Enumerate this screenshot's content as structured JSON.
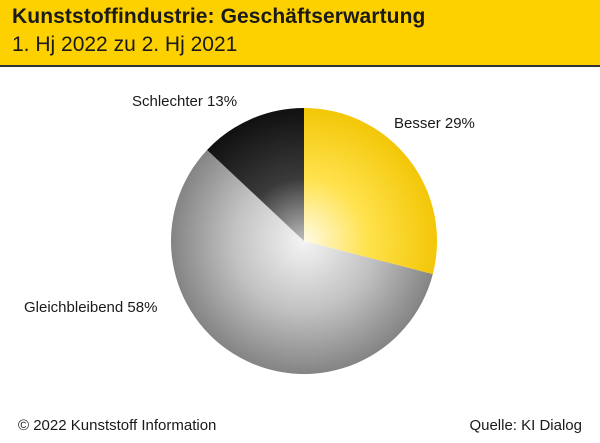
{
  "header": {
    "title": "Kunststoffindustrie: Geschäftserwartung",
    "subtitle": "1. Hj 2022 zu 2. Hj 2021",
    "background_color": "#fdd000"
  },
  "footer": {
    "copyright": "© 2022 Kunststoff Information",
    "source": "Quelle: KI Dialog"
  },
  "chart_data": {
    "type": "pie",
    "title": "Kunststoffindustrie: Geschäftserwartung",
    "subtitle": "1. Hj 2022 zu 2. Hj 2021",
    "start_angle_deg": 0,
    "direction": "clockwise",
    "slices": [
      {
        "label": "Besser 29%",
        "name": "Besser",
        "value": 29,
        "color": "#f7c800"
      },
      {
        "label": "Gleichbleibend 58%",
        "name": "Gleichbleibend",
        "value": 58,
        "color": "#8c8c8c"
      },
      {
        "label": "Schlechter 13%",
        "name": "Schlechter",
        "value": 13,
        "color": "#141414"
      }
    ]
  }
}
